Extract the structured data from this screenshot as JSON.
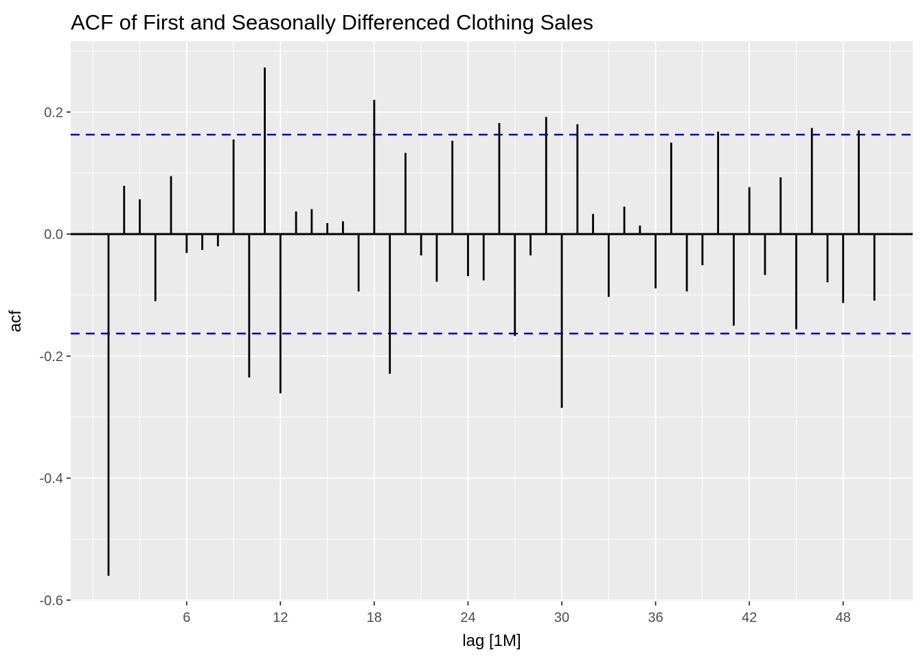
{
  "title": "ACF of First and Seasonally Differenced Clothing Sales",
  "chart_data": {
    "type": "bar",
    "subtype": "acf-lollipop",
    "title": "ACF of First and Seasonally Differenced Clothing Sales",
    "xlabel": "lag [1M]",
    "ylabel": "acf",
    "x": [
      1,
      2,
      3,
      4,
      5,
      6,
      7,
      8,
      9,
      10,
      11,
      12,
      13,
      14,
      15,
      16,
      17,
      18,
      19,
      20,
      21,
      22,
      23,
      24,
      25,
      26,
      27,
      28,
      29,
      30,
      31,
      32,
      33,
      34,
      35,
      36,
      37,
      38,
      39,
      40,
      41,
      42,
      43,
      44,
      45,
      46,
      47,
      48,
      49,
      50
    ],
    "values": [
      -0.56,
      0.079,
      0.057,
      -0.11,
      0.095,
      -0.031,
      -0.026,
      -0.02,
      0.155,
      -0.235,
      0.273,
      -0.261,
      0.037,
      0.041,
      0.018,
      0.021,
      -0.094,
      0.22,
      -0.229,
      0.133,
      -0.035,
      -0.078,
      0.153,
      -0.069,
      -0.076,
      0.182,
      -0.167,
      -0.035,
      0.192,
      -0.285,
      0.18,
      0.033,
      -0.103,
      0.045,
      0.014,
      -0.089,
      0.15,
      -0.094,
      -0.051,
      0.168,
      -0.15,
      0.077,
      -0.067,
      0.093,
      -0.156,
      0.174,
      -0.079,
      -0.113,
      0.17,
      -0.109
    ],
    "confidence_bounds": {
      "upper": 0.163,
      "lower": -0.163,
      "line_style": "dashed"
    },
    "x_ticks": [
      6,
      12,
      18,
      24,
      30,
      36,
      42,
      48
    ],
    "x_tick_labels": [
      "6",
      "12",
      "18",
      "24",
      "30",
      "36",
      "42",
      "48"
    ],
    "x_minor_ticks": [
      0,
      3,
      9,
      15,
      21,
      27,
      33,
      39,
      45,
      51
    ],
    "y_ticks": [
      0.2,
      0.0,
      -0.2,
      -0.4,
      -0.6
    ],
    "y_tick_labels": [
      "0.2",
      "0.0",
      "-0.2",
      "-0.4",
      "-0.6"
    ],
    "y_minor_ticks": [
      0.3,
      0.1,
      -0.1,
      -0.3,
      -0.5
    ],
    "xlim": [
      -1.42,
      52.45
    ],
    "ylim": [
      -0.602,
      0.316
    ],
    "grid": true,
    "legend_position": "none"
  },
  "colors": {
    "panel_bg": "#EBEBEB",
    "grid_major": "#FFFFFF",
    "grid_minor": "#FFFFFF",
    "bar": "#000000",
    "zero_line": "#000000",
    "ci_line": "#0000FF",
    "tick_mark": "#333333",
    "tick_label": "#4D4D4D",
    "title": "#000000"
  }
}
